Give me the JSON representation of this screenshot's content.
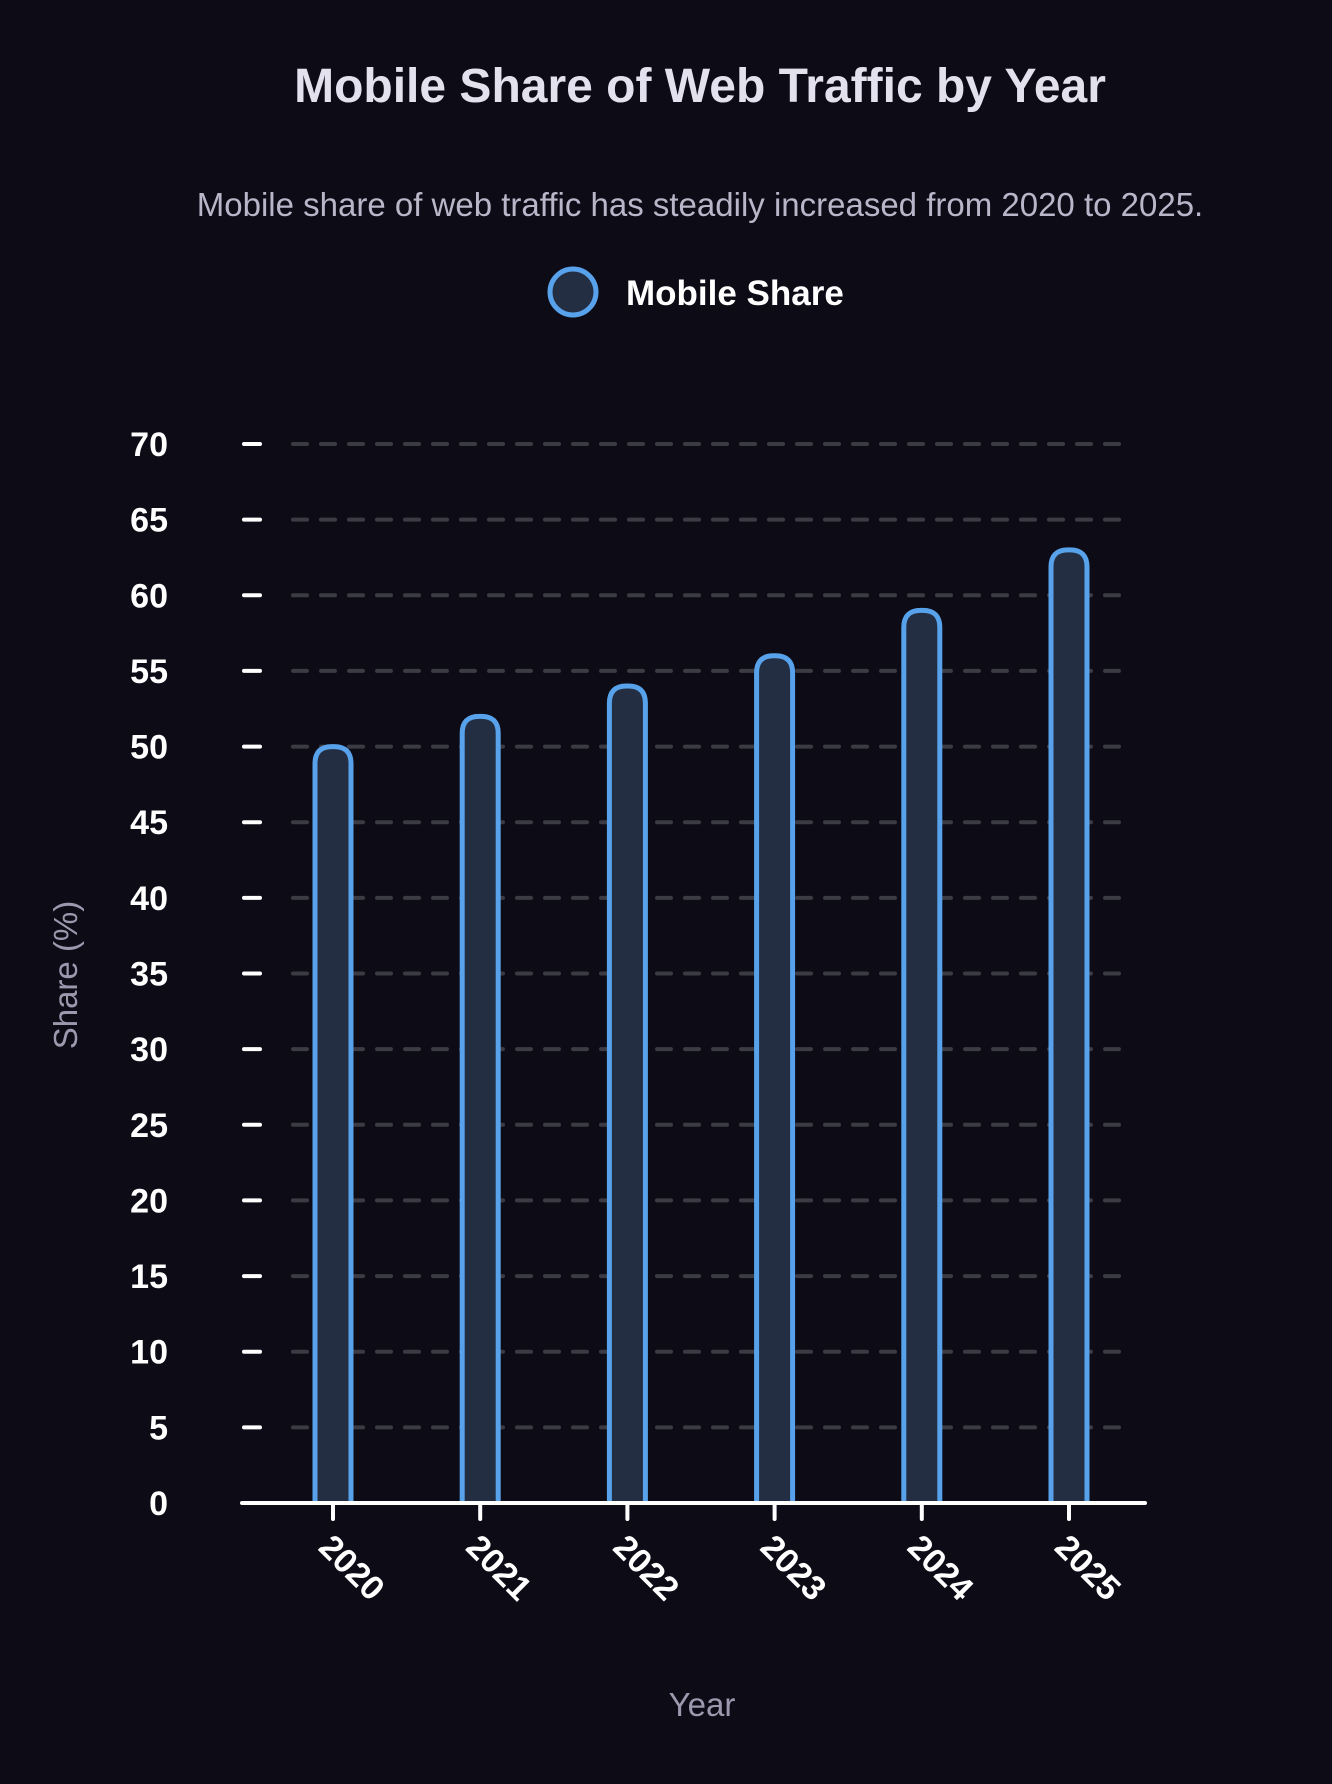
{
  "colors": {
    "background": "#0d0c16",
    "bar_stroke": "#58a2ec",
    "bar_fill": "#232e42",
    "grid": "#3b3b44",
    "axis": "#ffffff"
  },
  "chart_data": {
    "type": "bar",
    "title": "Mobile Share of Web Traffic by Year",
    "subtitle": "Mobile share of web traffic has steadily increased from 2020 to 2025.",
    "xlabel": "Year",
    "ylabel": "Share (%)",
    "categories": [
      "2020",
      "2021",
      "2022",
      "2023",
      "2024",
      "2025"
    ],
    "series": [
      {
        "name": "Mobile Share",
        "values": [
          50,
          52,
          54,
          56,
          59,
          63
        ]
      }
    ],
    "ylim": [
      0,
      70
    ],
    "yticks": [
      0,
      5,
      10,
      15,
      20,
      25,
      30,
      35,
      40,
      45,
      50,
      55,
      60,
      65,
      70
    ],
    "grid": true,
    "legend": "top-center"
  }
}
